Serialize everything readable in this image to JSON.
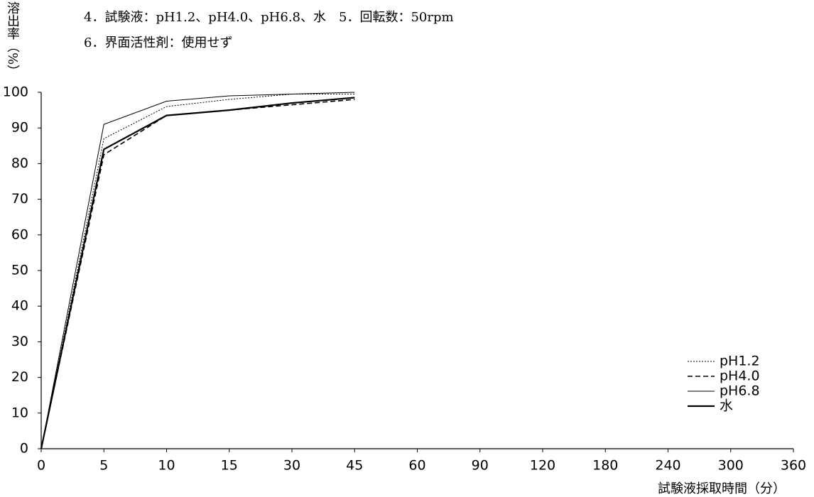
{
  "chart_data": {
    "type": "line",
    "notes": [
      "4．試験液：pH1.2、pH4.0、pH6.8、水　5．回転数：50rpm",
      "6．界面活性剤：使用せず"
    ],
    "y_label": "溶出率（%）",
    "x_label": "試験液採取時間（分）",
    "categories": [
      "0",
      "5",
      "10",
      "15",
      "30",
      "45",
      "60",
      "90",
      "120",
      "180",
      "240",
      "300",
      "360"
    ],
    "series": [
      {
        "name": "pH1.2",
        "color": "#000000",
        "values": [
          0,
          87,
          96,
          98,
          99.5,
          99.5,
          null,
          null,
          null,
          null,
          null,
          null,
          null
        ]
      },
      {
        "name": "pH4.0",
        "color": "#000000",
        "values": [
          0,
          82.5,
          93.5,
          95,
          96.5,
          98,
          null,
          null,
          null,
          null,
          null,
          null,
          null
        ]
      },
      {
        "name": "pH6.8",
        "color": "#000000",
        "values": [
          0,
          91,
          97.5,
          99,
          99.5,
          100,
          null,
          null,
          null,
          null,
          null,
          null,
          null
        ]
      },
      {
        "name": "水",
        "color": "#000000",
        "values": [
          0,
          84,
          93.5,
          95,
          97,
          98.5,
          null,
          null,
          null,
          null,
          null,
          null,
          null
        ]
      }
    ],
    "ylim": [
      0,
      100
    ],
    "yticks": [
      0,
      10,
      20,
      30,
      40,
      50,
      60,
      70,
      80,
      90,
      100
    ],
    "grid": false,
    "legend": "lower right"
  }
}
